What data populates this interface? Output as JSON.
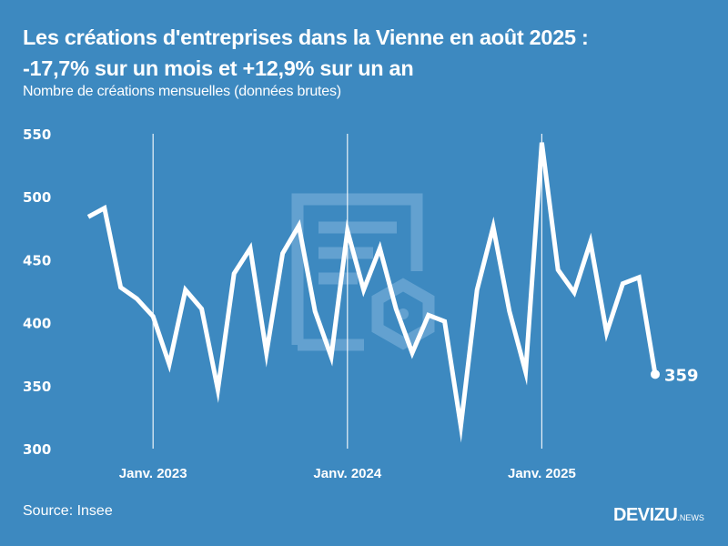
{
  "header": {
    "title_line1": "Les créations d'entreprises dans la Vienne en août 2025 :",
    "title_line2": "-17,7% sur un mois et +12,9% sur un an",
    "subtitle": "Nombre de créations mensuelles (données brutes)"
  },
  "footer": {
    "source": "Source: Insee",
    "logo_main": "DEVIZU",
    "logo_sub": ".NEWS"
  },
  "colors": {
    "background": "#3d89c0",
    "line": "#ffffff",
    "watermark": "#6aa6d3"
  },
  "watermark_icon": "document-gear-icon",
  "chart_data": {
    "type": "line",
    "title": "Les créations d'entreprises dans la Vienne en août 2025 : -17,7% sur un mois et +12,9% sur un an",
    "subtitle": "Nombre de créations mensuelles (données brutes)",
    "xlabel": "",
    "ylabel": "",
    "ylim": [
      300,
      550
    ],
    "yticks": [
      300,
      350,
      400,
      450,
      500,
      550
    ],
    "ytick_labels": [
      "300",
      "350",
      "400",
      "450",
      "500",
      "550"
    ],
    "x": [
      "2022-09",
      "2022-10",
      "2022-11",
      "2022-12",
      "2023-01",
      "2023-02",
      "2023-03",
      "2023-04",
      "2023-05",
      "2023-06",
      "2023-07",
      "2023-08",
      "2023-09",
      "2023-10",
      "2023-11",
      "2023-12",
      "2024-01",
      "2024-02",
      "2024-03",
      "2024-04",
      "2024-05",
      "2024-06",
      "2024-07",
      "2024-08",
      "2024-09",
      "2024-10",
      "2024-11",
      "2024-12",
      "2025-01",
      "2025-02",
      "2025-03",
      "2025-04",
      "2025-05",
      "2025-06",
      "2025-07",
      "2025-08"
    ],
    "xticks": [
      {
        "index": 4,
        "label": "Janv. 2023"
      },
      {
        "index": 16,
        "label": "Janv. 2024"
      },
      {
        "index": 28,
        "label": "Janv. 2025"
      }
    ],
    "series": [
      {
        "name": "Créations d'entreprises",
        "values": [
          484,
          491,
          428,
          419,
          405,
          367,
          426,
          411,
          347,
          439,
          459,
          376,
          455,
          477,
          409,
          373,
          473,
          426,
          459,
          411,
          376,
          406,
          401,
          318,
          426,
          476,
          409,
          361,
          543,
          442,
          424,
          464,
          392,
          431,
          436,
          359
        ]
      }
    ],
    "end_label": "359",
    "grid": "vertical lines at January",
    "legend": "none",
    "source": "Source: Insee"
  }
}
